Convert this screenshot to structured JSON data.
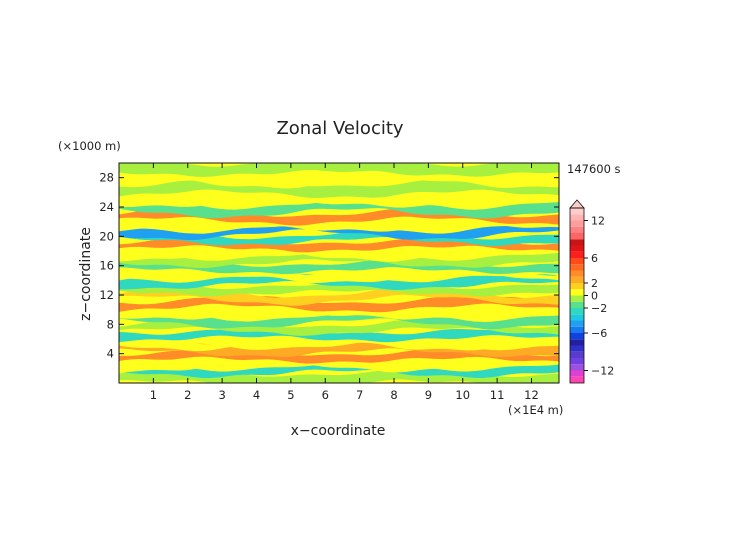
{
  "chart_data": {
    "type": "heatmap",
    "title": "Zonal Velocity",
    "xlabel": "x−coordinate",
    "ylabel": "z−coordinate",
    "x_unit": "(×1E4 m)",
    "y_unit": "(×1000 m)",
    "time_label": "147600 s",
    "xlim": [
      0,
      12.8
    ],
    "ylim": [
      0,
      30
    ],
    "x_ticks": [
      "1",
      "2",
      "3",
      "4",
      "5",
      "6",
      "7",
      "8",
      "9",
      "10",
      "11",
      "12"
    ],
    "y_ticks": [
      "4",
      "8",
      "12",
      "16",
      "20",
      "24",
      "28"
    ],
    "colorbar": {
      "labels": [
        "12",
        "6",
        "2",
        "0",
        "−2",
        "−6",
        "−12"
      ],
      "levels": [
        {
          "min": -14,
          "max": -13,
          "color": "#ff44b4"
        },
        {
          "min": -13,
          "max": -12,
          "color": "#e040d0"
        },
        {
          "min": -12,
          "max": -11,
          "color": "#a050e0"
        },
        {
          "min": -11,
          "max": -10,
          "color": "#7040e0"
        },
        {
          "min": -10,
          "max": -9,
          "color": "#5a3ccc"
        },
        {
          "min": -9,
          "max": -8,
          "color": "#3030c8"
        },
        {
          "min": -8,
          "max": -7,
          "color": "#2020a0"
        },
        {
          "min": -7,
          "max": -6,
          "color": "#1040e0"
        },
        {
          "min": -6,
          "max": -5,
          "color": "#1878f0"
        },
        {
          "min": -5,
          "max": -4,
          "color": "#20a0f0"
        },
        {
          "min": -4,
          "max": -3,
          "color": "#20c8e0"
        },
        {
          "min": -3,
          "max": -2,
          "color": "#30d8c0"
        },
        {
          "min": -2,
          "max": -1,
          "color": "#58e08c"
        },
        {
          "min": -1,
          "max": 0,
          "color": "#a8f040"
        },
        {
          "min": 0,
          "max": 1,
          "color": "#ffff1e"
        },
        {
          "min": 1,
          "max": 2,
          "color": "#ffd020"
        },
        {
          "min": 2,
          "max": 3,
          "color": "#ffaa24"
        },
        {
          "min": 3,
          "max": 4,
          "color": "#ff8c28"
        },
        {
          "min": 4,
          "max": 5,
          "color": "#ff6a22"
        },
        {
          "min": 5,
          "max": 6,
          "color": "#ff4a1a"
        },
        {
          "min": 6,
          "max": 7,
          "color": "#ff1e1e"
        },
        {
          "min": 7,
          "max": 8,
          "color": "#e01414"
        },
        {
          "min": 8,
          "max": 9,
          "color": "#c81414"
        },
        {
          "min": 9,
          "max": 10,
          "color": "#ff6464"
        },
        {
          "min": 10,
          "max": 11,
          "color": "#ff8080"
        },
        {
          "min": 11,
          "max": 12,
          "color": "#ff9c9c"
        },
        {
          "min": 12,
          "max": 13,
          "color": "#ffb4b4"
        },
        {
          "min": 13,
          "max": 14,
          "color": "#ffcccc"
        }
      ]
    },
    "bands": [
      {
        "z": 0.8,
        "u": -1
      },
      {
        "z": 1.8,
        "u": -2.6
      },
      {
        "z": 2.6,
        "u": 0.3
      },
      {
        "z": 3.6,
        "u": 3.1
      },
      {
        "z": 4.6,
        "u": 2.2
      },
      {
        "z": 5.6,
        "u": 0.2
      },
      {
        "z": 6.5,
        "u": -2.4
      },
      {
        "z": 7.6,
        "u": -0.6
      },
      {
        "z": 8.6,
        "u": -1.2
      },
      {
        "z": 9.6,
        "u": 0.4
      },
      {
        "z": 10.8,
        "u": 3.1
      },
      {
        "z": 11.8,
        "u": 1.6
      },
      {
        "z": 12.8,
        "u": -0.4
      },
      {
        "z": 13.8,
        "u": -2.3
      },
      {
        "z": 14.8,
        "u": 0.6
      },
      {
        "z": 15.8,
        "u": -1.3
      },
      {
        "z": 16.8,
        "u": -0.5
      },
      {
        "z": 17.8,
        "u": 0.4
      },
      {
        "z": 18.8,
        "u": 3.2
      },
      {
        "z": 19.8,
        "u": -2.1
      },
      {
        "z": 20.6,
        "u": -4.5
      },
      {
        "z": 21.6,
        "u": 0.8
      },
      {
        "z": 22.6,
        "u": 3.0
      },
      {
        "z": 23.8,
        "u": -1.1
      },
      {
        "z": 25.0,
        "u": 0.3
      },
      {
        "z": 26.5,
        "u": -0.4
      },
      {
        "z": 28.0,
        "u": 0.1
      },
      {
        "z": 29.2,
        "u": -0.6
      }
    ]
  }
}
